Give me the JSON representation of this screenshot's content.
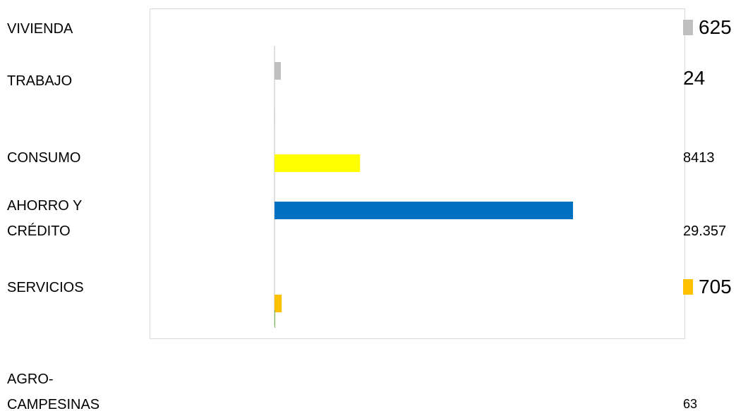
{
  "chart_data": {
    "type": "bar",
    "categories": [
      "VIVIENDA",
      "TRABAJO",
      "CONSUMO",
      "AHORRO Y CRÉDITO",
      "SERVICIOS",
      "AGRO-CAMPESINAS"
    ],
    "values": [
      625,
      24,
      8413,
      29357,
      705,
      63
    ],
    "value_labels": [
      "625",
      "24",
      "8413",
      "29.357",
      "705",
      "63"
    ],
    "colors": [
      "#bfbfbf",
      "#a5a5a5",
      "#ffff00",
      "#0070c0",
      "#ffc000",
      "#70ad47"
    ]
  }
}
